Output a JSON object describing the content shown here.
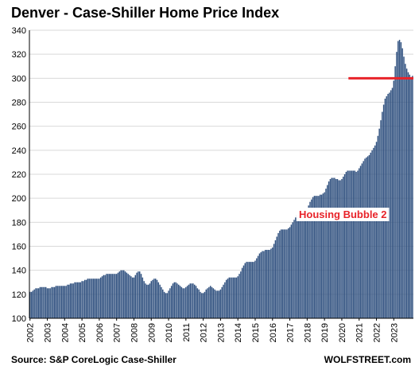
{
  "chart_data": {
    "type": "bar",
    "title": "Denver  - Case-Shiller Home Price Index",
    "source": "Source: S&P CoreLogic Case-Shiller",
    "brand": "WOLFSTREET.com",
    "ylim": [
      100,
      340
    ],
    "yticks": [
      100,
      120,
      140,
      160,
      180,
      200,
      220,
      240,
      260,
      280,
      300,
      320,
      340
    ],
    "xticks": [
      "2002",
      "2003",
      "2004",
      "2005",
      "2006",
      "2007",
      "2008",
      "2009",
      "2010",
      "2011",
      "2012",
      "2013",
      "2014",
      "2015",
      "2016",
      "2017",
      "2018",
      "2019",
      "2020",
      "2021",
      "2022",
      "2023"
    ],
    "grid": true,
    "bar_color": "#2E4F7E",
    "x_start": "2002-01",
    "frequency": "monthly",
    "values": [
      122,
      122,
      123,
      124,
      125,
      125,
      125,
      126,
      126,
      126,
      126,
      126,
      125,
      125,
      125,
      126,
      126,
      126,
      127,
      127,
      127,
      127,
      127,
      127,
      127,
      127,
      128,
      128,
      129,
      129,
      129,
      130,
      130,
      130,
      130,
      130,
      131,
      131,
      132,
      132,
      133,
      133,
      133,
      133,
      133,
      133,
      133,
      133,
      133,
      134,
      135,
      136,
      136,
      137,
      137,
      137,
      137,
      137,
      137,
      137,
      137,
      138,
      139,
      140,
      140,
      140,
      139,
      138,
      137,
      136,
      135,
      134,
      134,
      136,
      138,
      139,
      139,
      137,
      134,
      131,
      129,
      128,
      128,
      129,
      131,
      132,
      133,
      133,
      132,
      130,
      128,
      126,
      124,
      122,
      121,
      121,
      123,
      125,
      127,
      129,
      130,
      130,
      129,
      128,
      127,
      126,
      125,
      125,
      126,
      127,
      128,
      129,
      129,
      129,
      128,
      127,
      125,
      124,
      122,
      121,
      121,
      122,
      124,
      125,
      126,
      127,
      126,
      125,
      124,
      123,
      123,
      123,
      124,
      126,
      128,
      130,
      132,
      133,
      134,
      134,
      134,
      134,
      134,
      134,
      135,
      137,
      139,
      142,
      144,
      146,
      147,
      147,
      147,
      147,
      147,
      147,
      148,
      150,
      152,
      154,
      155,
      156,
      156,
      157,
      157,
      157,
      157,
      158,
      159,
      162,
      165,
      168,
      171,
      173,
      174,
      174,
      174,
      174,
      174,
      175,
      176,
      178,
      180,
      182,
      184,
      186,
      188,
      189,
      190,
      190,
      190,
      191,
      192,
      194,
      197,
      199,
      201,
      202,
      202,
      202,
      202,
      203,
      203,
      204,
      205,
      208,
      211,
      214,
      216,
      217,
      217,
      217,
      216,
      216,
      215,
      215,
      216,
      218,
      220,
      222,
      223,
      223,
      223,
      223,
      223,
      223,
      222,
      223,
      225,
      227,
      229,
      231,
      233,
      234,
      235,
      236,
      238,
      240,
      242,
      244,
      247,
      252,
      258,
      265,
      272,
      278,
      283,
      285,
      287,
      288,
      290,
      292,
      298,
      310,
      322,
      331,
      332,
      330,
      325,
      318,
      312,
      308,
      305,
      303,
      301,
      302
    ],
    "reference_line": {
      "value": 300,
      "color": "#E8232A",
      "from": "2020-06"
    },
    "annotation": {
      "text": "Housing Bubble 2",
      "color": "#E8232A"
    }
  }
}
